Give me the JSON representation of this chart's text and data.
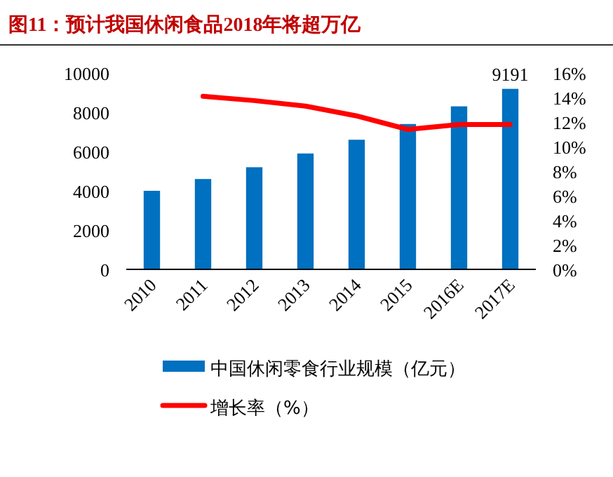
{
  "chart_data": {
    "type": "bar",
    "title": "图11：预计我国休闲食品2018年将超万亿",
    "categories": [
      "2010",
      "2011",
      "2012",
      "2013",
      "2014",
      "2015",
      "2016E",
      "2017E"
    ],
    "series": [
      {
        "name": "中国休闲零食行业规模（亿元）",
        "color": "#0070c0",
        "values": [
          4000,
          4600,
          5200,
          5900,
          6600,
          7400,
          8300,
          9191
        ],
        "value_labels": [
          null,
          null,
          null,
          null,
          null,
          null,
          null,
          "9191"
        ]
      },
      {
        "name": "增长率（%）",
        "type": "line",
        "axis": "y2",
        "color": "#ff0000",
        "values": [
          null,
          14.1,
          13.75,
          13.3,
          12.5,
          11.4,
          11.8,
          11.8
        ]
      }
    ],
    "ylim": [
      0,
      10000
    ],
    "yticks": [
      0,
      2000,
      4000,
      6000,
      8000,
      10000
    ],
    "y2lim": [
      0,
      16
    ],
    "y2ticks": [
      {
        "value": 0,
        "label": "0%"
      },
      {
        "value": 2,
        "label": "2%"
      },
      {
        "value": 4,
        "label": "4%"
      },
      {
        "value": 6,
        "label": "6%"
      },
      {
        "value": 8,
        "label": "8%"
      },
      {
        "value": 10,
        "label": "10%"
      },
      {
        "value": 12,
        "label": "12%"
      },
      {
        "value": 14,
        "label": "14%"
      },
      {
        "value": 16,
        "label": "16%"
      }
    ],
    "grid": false,
    "legend": "bottom"
  }
}
